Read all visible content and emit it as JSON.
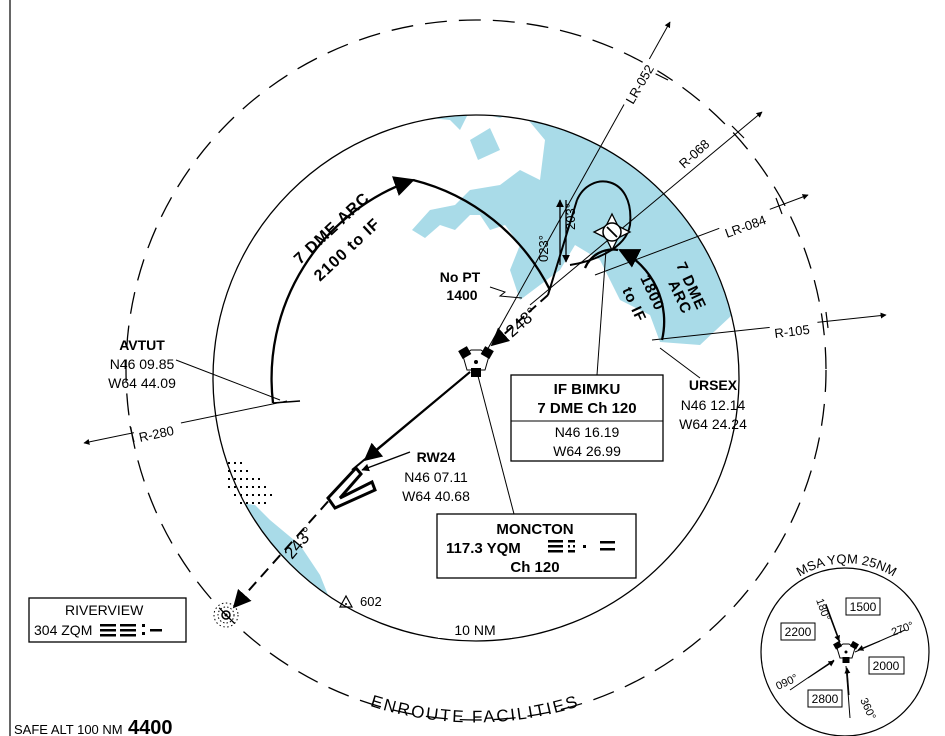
{
  "legs": {
    "avtut_arc": {
      "line1": "7 DME ARC",
      "line2": "2100 to IF"
    },
    "ursex_arc": {
      "line1": "7 DME",
      "line2": "ARC",
      "line3": "1800",
      "line4": "to IF"
    }
  },
  "bearings": {
    "inbound": "248°",
    "final": "243°",
    "hold_out": "023°",
    "hold_in": "203°"
  },
  "no_pt": {
    "line1": "No PT",
    "line2": "1400"
  },
  "radials": {
    "lr052": "LR-052",
    "r068": "R-068",
    "lr084": "LR-084",
    "r105": "R-105",
    "r280": "R-280"
  },
  "fixes": {
    "avtut": {
      "name": "AVTUT",
      "lat": "N46 09.85",
      "lon": "W64 44.09"
    },
    "ursex": {
      "name": "URSEX",
      "lat": "N46 12.14",
      "lon": "W64 24.24"
    },
    "rw24": {
      "name": "RW24",
      "lat": "N46 07.11",
      "lon": "W64 40.68"
    }
  },
  "if_box": {
    "title": "IF BIMKU",
    "subtitle": "7 DME Ch 120",
    "lat": "N46 16.19",
    "lon": "W64 26.99"
  },
  "moncton_box": {
    "name": "MONCTON",
    "freq": "117.3 YQM",
    "channel": "Ch 120"
  },
  "riverview_box": {
    "name": "RIVERVIEW",
    "freq": "304 ZQM"
  },
  "obstacle": {
    "elev": "602"
  },
  "ring_label": "10 NM",
  "enroute_label": "ENROUTE FACILITIES",
  "safe_alt": {
    "label": "SAFE ALT 100 NM",
    "value": "4400"
  },
  "msa": {
    "title": "MSA YQM 25NM",
    "sectors": [
      {
        "alt": "1500",
        "bearing": "180°"
      },
      {
        "alt": "2000",
        "bearing": "270°"
      },
      {
        "alt": "2800",
        "bearing": "360°"
      },
      {
        "alt": "2200",
        "bearing": "090°"
      }
    ]
  },
  "colors": {
    "water": "#a9dbe8",
    "ink": "#000000"
  }
}
